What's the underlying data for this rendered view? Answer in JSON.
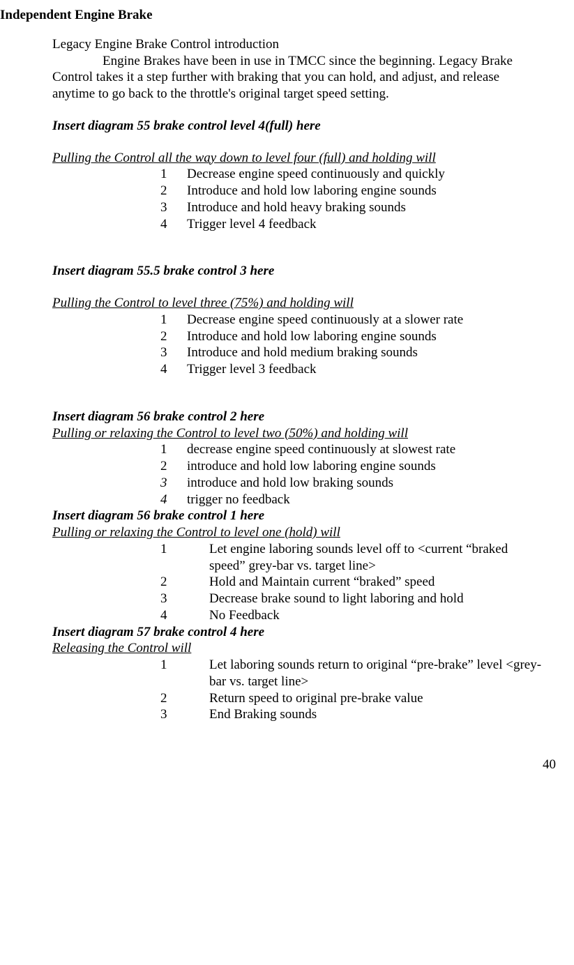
{
  "page_title": "Independent Engine Brake",
  "subtitle": "Legacy Engine Brake Control introduction",
  "intro": "Engine Brakes have been in use in TMCC since the beginning. Legacy Brake Control takes it a step further with braking that you can hold, and adjust, and release anytime to go back to the throttle's original target speed setting.",
  "sections": [
    {
      "diagram": "Insert diagram 55 brake control level 4(full) here",
      "diagram_tight": false,
      "heading": "Pulling the Control all the way down to level four (full) and holding will",
      "list_style": "l1",
      "tight": false,
      "items": [
        {
          "n": "1",
          "t": "Decrease engine speed continuously and quickly",
          "italic": false
        },
        {
          "n": "2",
          "t": "Introduce and hold low laboring engine sounds",
          "italic": false
        },
        {
          "n": "3",
          "t": "Introduce and hold heavy braking sounds",
          "italic": false
        },
        {
          "n": "4",
          "t": "Trigger level 4 feedback",
          "italic": false
        }
      ]
    },
    {
      "diagram": "Insert diagram 55.5 brake control 3 here",
      "diagram_tight": false,
      "heading": "Pulling the Control to level three (75%) and  holding will",
      "list_style": "l1",
      "tight": false,
      "items": [
        {
          "n": "1",
          "t": "Decrease engine speed continuously at a slower rate",
          "italic": false
        },
        {
          "n": "2",
          "t": "Introduce and hold low laboring engine sounds",
          "italic": false
        },
        {
          "n": "3",
          "t": " Introduce and hold medium braking sounds",
          "italic": false
        },
        {
          "n": "4",
          "t": "Trigger level 3 feedback",
          "italic": false
        }
      ]
    },
    {
      "diagram": "Insert diagram 56 brake control 2 here",
      "diagram_tight": true,
      "heading": "Pulling or relaxing the Control to level two (50%) and holding will",
      "list_style": "l1",
      "tight": true,
      "items": [
        {
          "n": "1",
          "t": "decrease engine speed continuously at slowest rate",
          "italic": false
        },
        {
          "n": "2",
          "t": "introduce and hold low laboring engine sounds",
          "italic": false
        },
        {
          "n": "3",
          "t": "introduce and hold low braking sounds",
          "italic": true
        },
        {
          "n": "4",
          "t": "trigger no feedback",
          "italic": true
        }
      ]
    },
    {
      "diagram": "Insert diagram 56 brake control 1 here",
      "diagram_tight": true,
      "heading": "Pulling or relaxing the Control to level one (hold) will",
      "list_style": "l2",
      "tight": true,
      "items": [
        {
          "n": "1",
          "t": "Let engine laboring sounds level off to <current “braked speed” grey-bar vs. target line>",
          "italic": false
        },
        {
          "n": "2",
          "t": "Hold and Maintain current “braked” speed",
          "italic": false
        },
        {
          "n": "3",
          "t": "Decrease brake sound to light laboring and hold",
          "italic": false
        },
        {
          "n": "4",
          "t": "No Feedback",
          "italic": false
        }
      ]
    },
    {
      "diagram": "Insert diagram 57 brake control 4 here",
      "diagram_tight": true,
      "heading": "Releasing the Control will",
      "list_style": "l2",
      "tight": true,
      "items": [
        {
          "n": "1",
          "t": "Let laboring sounds return to original “pre-brake” level <grey-bar vs. target line>",
          "italic": false
        },
        {
          "n": "2",
          "t": "Return speed to original pre-brake value",
          "italic": false
        },
        {
          "n": "3",
          "t": "End Braking sounds",
          "italic": false
        }
      ]
    }
  ],
  "page_number": "40"
}
